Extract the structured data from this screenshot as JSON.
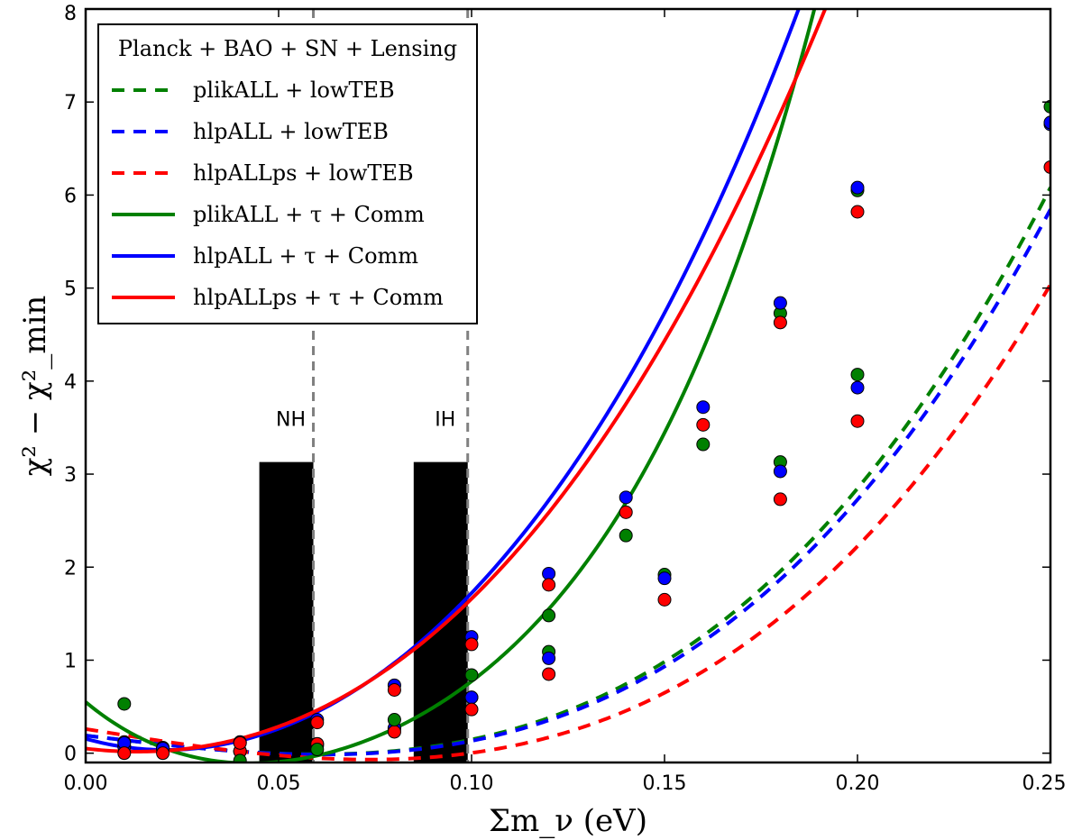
{
  "chart_data": {
    "type": "line",
    "xlabel": "Σm_ν (eV)",
    "ylabel": "χ² − χ²_min",
    "xlim": [
      0.0,
      0.25
    ],
    "ylim": [
      -0.1,
      8.0
    ],
    "xticks": [
      "0.00",
      "0.05",
      "0.10",
      "0.15",
      "0.20",
      "0.25"
    ],
    "yticks": [
      "0",
      "1",
      "2",
      "3",
      "4",
      "5",
      "6",
      "7",
      "8"
    ],
    "legend_title": "Planck + BAO + SN + Lensing",
    "legend_position": "top-left",
    "vlines": [
      0.059,
      0.099
    ],
    "bands": [
      {
        "label": "NH",
        "x0": 0.045,
        "x1": 0.059,
        "height": 3.13
      },
      {
        "label": "IH",
        "x0": 0.085,
        "x1": 0.099,
        "height": 3.13
      }
    ],
    "series": [
      {
        "name": "plikALL + lowTEB",
        "color": "#008000",
        "style": "dashed",
        "points_x": [
          0.01,
          0.02,
          0.04,
          0.06,
          0.08,
          0.1,
          0.12,
          0.15,
          0.18,
          0.2,
          0.25
        ],
        "points_y": [
          0.07,
          0.05,
          0.02,
          0.08,
          0.26,
          0.6,
          1.09,
          1.92,
          3.13,
          4.07,
          6.95
        ],
        "fit": [
          0.19,
          -5.0,
          0.0,
          457.0
        ]
      },
      {
        "name": "hlpALL + lowTEB",
        "color": "#0000ff",
        "style": "dashed",
        "points_x": [
          0.01,
          0.02,
          0.04,
          0.06,
          0.08,
          0.1,
          0.12,
          0.15,
          0.18,
          0.2,
          0.25
        ],
        "points_y": [
          0.07,
          0.05,
          0.02,
          0.1,
          0.27,
          0.6,
          1.02,
          1.88,
          3.03,
          3.93,
          6.76
        ],
        "fit": [
          0.19,
          -5.0,
          0.0,
          442.0
        ]
      },
      {
        "name": "hlpALLps + lowTEB",
        "color": "#ff0000",
        "style": "dashed",
        "points_x": [
          0.01,
          0.02,
          0.04,
          0.06,
          0.08,
          0.1,
          0.12,
          0.15,
          0.18,
          0.2,
          0.25
        ],
        "points_y": [
          0.12,
          0.06,
          0.02,
          0.1,
          0.23,
          0.47,
          0.85,
          1.65,
          2.73,
          3.57,
          6.3
        ],
        "fit": [
          0.26,
          -6.7,
          0.0,
          413.0
        ]
      },
      {
        "name": "plikALL + τ + Comm",
        "color": "#008000",
        "style": "solid",
        "points_x": [
          0.01,
          0.02,
          0.04,
          0.06,
          0.08,
          0.1,
          0.12,
          0.14,
          0.16,
          0.18,
          0.2
        ],
        "points_y": [
          0.53,
          0.05,
          -0.08,
          0.04,
          0.36,
          0.84,
          1.48,
          2.34,
          3.32,
          4.73,
          6.05
        ],
        "fit": [
          0.55,
          -34.6,
          559.0,
          -3060.0,
          11525.0
        ]
      },
      {
        "name": "hlpALL + τ + Comm",
        "color": "#0000ff",
        "style": "solid",
        "points_x": [
          0.01,
          0.02,
          0.04,
          0.06,
          0.08,
          0.1,
          0.12,
          0.14,
          0.16,
          0.18,
          0.2,
          0.25
        ],
        "points_y": [
          0.11,
          0.05,
          0.12,
          0.36,
          0.73,
          1.25,
          1.93,
          2.75,
          3.72,
          4.84,
          6.08,
          6.78
        ],
        "fit": [
          0.155,
          -11.6,
          288.0,
          -363.0,
          2100.0
        ]
      },
      {
        "name": "hlpALLps + τ + Comm",
        "color": "#ff0000",
        "style": "solid",
        "points_x": [
          0.01,
          0.02,
          0.04,
          0.06,
          0.08,
          0.1,
          0.12,
          0.14,
          0.16,
          0.18,
          0.2
        ],
        "points_y": [
          0.0,
          0.0,
          0.11,
          0.33,
          0.68,
          1.17,
          1.81,
          2.59,
          3.53,
          4.63,
          5.82
        ],
        "fit": [
          0.05,
          -4.9,
          175.0,
          350.0,
          0.0
        ]
      }
    ]
  }
}
